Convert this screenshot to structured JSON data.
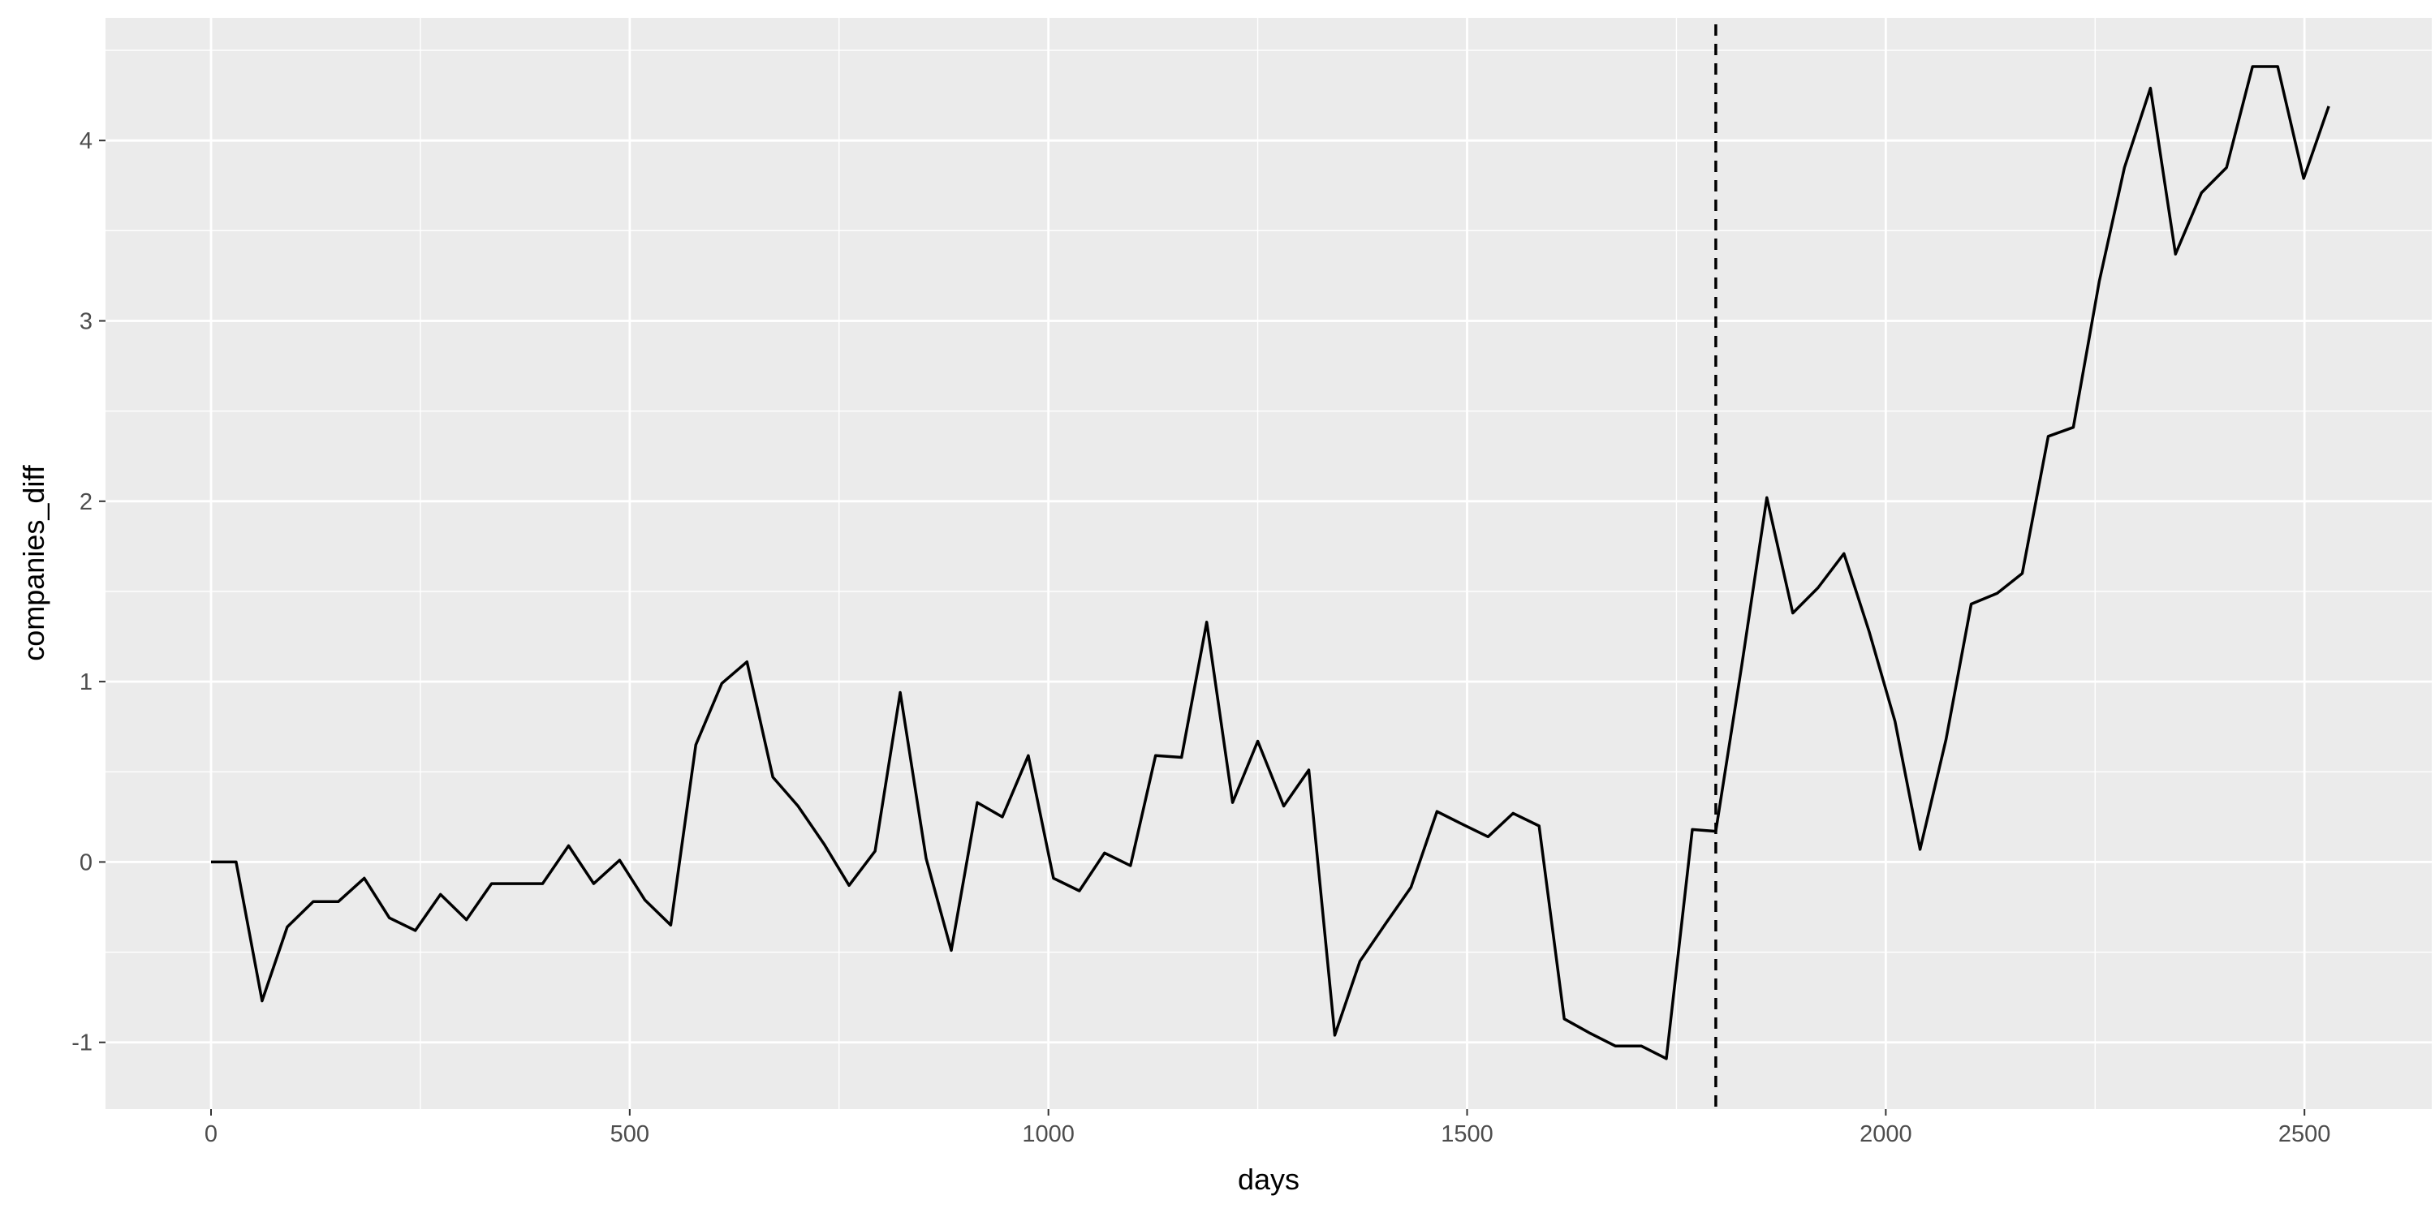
{
  "chart_data": {
    "type": "line",
    "title": "",
    "xlabel": "days",
    "ylabel": "companies_diff",
    "xlim": [
      -126,
      2652
    ],
    "ylim": [
      -1.37,
      4.68
    ],
    "x_ticks": [
      0,
      500,
      1000,
      1500,
      2000,
      2500
    ],
    "x_tick_labels": [
      "0",
      "500",
      "1000",
      "1500",
      "2000",
      "2500"
    ],
    "y_ticks": [
      -1,
      0,
      1,
      2,
      3,
      4
    ],
    "y_tick_labels": [
      "-1",
      "0",
      "1",
      "2",
      "3",
      "4"
    ],
    "grid": true,
    "background": "#EBEBEB",
    "grid_color": "#FFFFFF",
    "line_color": "#000000",
    "reference_line": {
      "orientation": "vertical",
      "x": 1797,
      "style": "dashed",
      "color": "#000000"
    },
    "series": [
      {
        "x": [
          0,
          30,
          61,
          91,
          122,
          152,
          183,
          213,
          244,
          274,
          305,
          335,
          366,
          396,
          427,
          457,
          488,
          518,
          549,
          579,
          610,
          640,
          671,
          701,
          732,
          762,
          793,
          823,
          854,
          884,
          915,
          945,
          976,
          1006,
          1037,
          1067,
          1098,
          1128,
          1159,
          1189,
          1220,
          1250,
          1281,
          1311,
          1342,
          1372,
          1403,
          1433,
          1464,
          1494,
          1525,
          1555,
          1586,
          1616,
          1647,
          1677,
          1708,
          1738,
          1769,
          1797,
          1828,
          1858,
          1889,
          1919,
          1950,
          1980,
          2011,
          2041,
          2072,
          2102,
          2133,
          2163,
          2194,
          2224,
          2255,
          2285,
          2316,
          2346,
          2377,
          2407,
          2438,
          2468,
          2499,
          2529
        ],
        "y": [
          0,
          0,
          -0.77,
          -0.36,
          -0.22,
          -0.22,
          -0.09,
          -0.31,
          -0.38,
          -0.18,
          -0.32,
          -0.12,
          -0.12,
          -0.12,
          0.09,
          -0.12,
          0.01,
          -0.21,
          -0.35,
          0.65,
          0.99,
          1.11,
          0.47,
          0.31,
          0.1,
          -0.13,
          0.06,
          0.94,
          0.02,
          -0.49,
          0.33,
          0.25,
          0.59,
          -0.09,
          -0.16,
          0.05,
          -0.02,
          0.59,
          0.58,
          1.33,
          0.33,
          0.67,
          0.31,
          0.51,
          -0.96,
          -0.55,
          -0.34,
          -0.14,
          0.28,
          0.21,
          0.14,
          0.27,
          0.2,
          -0.87,
          -0.95,
          -1.02,
          -1.02,
          -1.09,
          0.18,
          0.17,
          1.09,
          2.02,
          1.38,
          1.52,
          1.71,
          1.28,
          0.78,
          0.07,
          0.68,
          1.43,
          1.49,
          1.6,
          2.36,
          2.41,
          3.22,
          3.85,
          4.29,
          3.37,
          3.71,
          3.85,
          4.41,
          4.41,
          3.79,
          4.19
        ]
      }
    ]
  }
}
